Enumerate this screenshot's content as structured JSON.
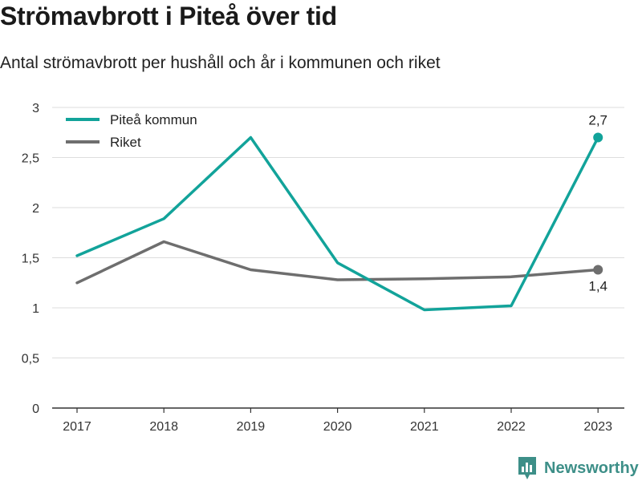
{
  "title": "Strömavbrott i Piteå över tid",
  "subtitle": "Antal strömavbrott per hushåll och år i kommunen och riket",
  "brand": {
    "name": "Newsworthy",
    "icon": "newsworthy-logo-icon",
    "color": "#3d8f88"
  },
  "colors": {
    "pitea": "#12a39a",
    "riket": "#6e6e6e",
    "grid": "#dddddd",
    "axis": "#333333"
  },
  "chart_data": {
    "type": "line",
    "x": [
      "2017",
      "2018",
      "2019",
      "2020",
      "2021",
      "2022",
      "2023"
    ],
    "ylim": [
      0,
      3
    ],
    "yticks": [
      0,
      0.5,
      1,
      1.5,
      2,
      2.5,
      3
    ],
    "ytick_labels": [
      "0",
      "0,5",
      "1",
      "1,5",
      "2",
      "2,5",
      "3"
    ],
    "grid": true,
    "legend_position": "top-left",
    "series": [
      {
        "name": "Piteå kommun",
        "color": "#12a39a",
        "values": [
          1.52,
          1.89,
          2.7,
          1.45,
          0.98,
          1.02,
          2.7
        ],
        "end_label": "2,7"
      },
      {
        "name": "Riket",
        "color": "#6e6e6e",
        "values": [
          1.25,
          1.66,
          1.38,
          1.28,
          1.29,
          1.31,
          1.38
        ],
        "end_label": "1,4"
      }
    ]
  }
}
